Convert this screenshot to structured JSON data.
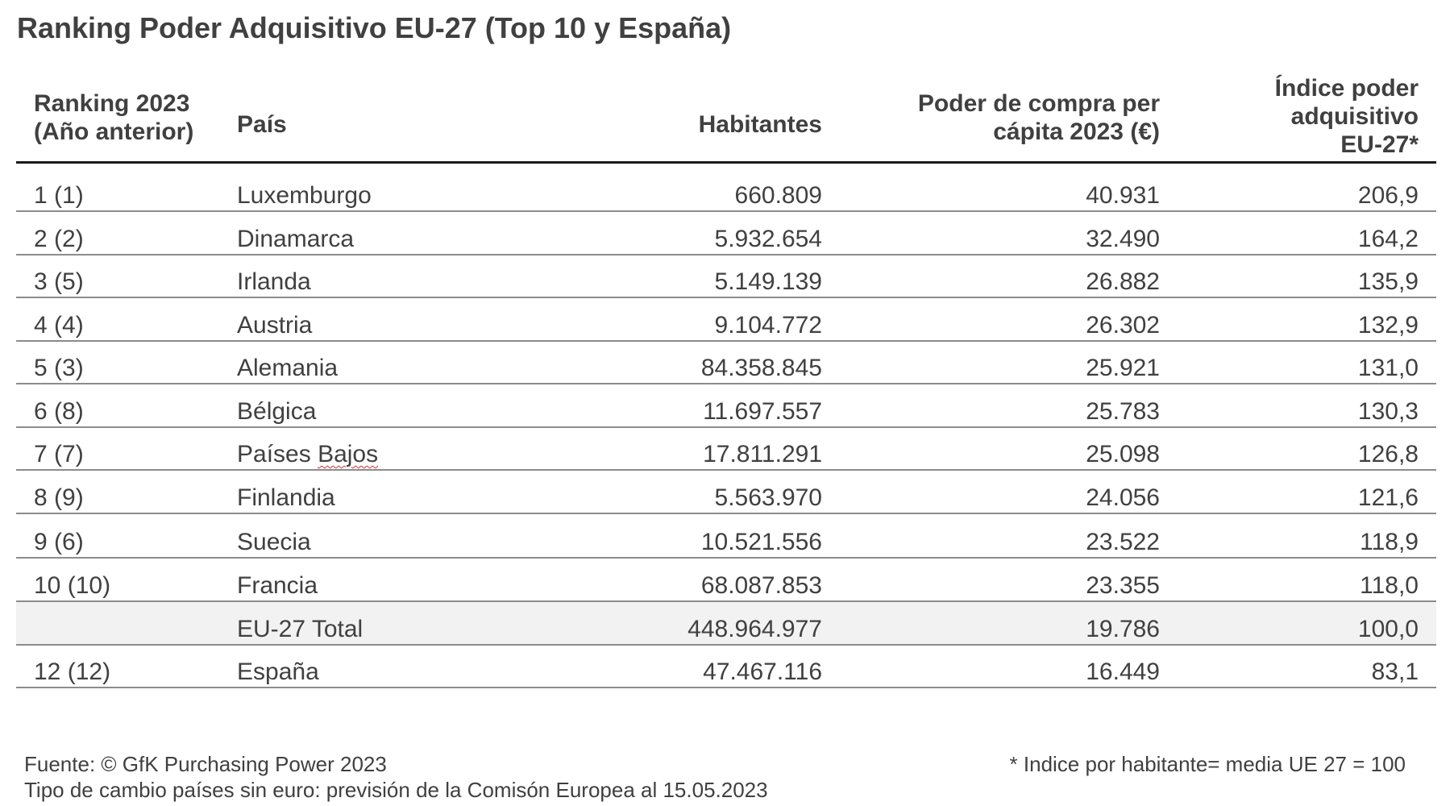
{
  "title": "Ranking Poder Adquisitivo EU-27 (Top 10 y España)",
  "chart_data": {
    "type": "table",
    "title": "Ranking Poder Adquisitivo EU-27 (Top 10 y España)",
    "columns": [
      {
        "line1": "Ranking 2023",
        "line2": "(Año anterior)"
      },
      {
        "line1": "País"
      },
      {
        "line1": "Habitantes"
      },
      {
        "line1": "Poder de compra per",
        "line2": "cápita 2023 (€)"
      },
      {
        "line1": "Índice poder",
        "line2": "adquisitivo",
        "line3": "EU-27*"
      }
    ],
    "rows": [
      {
        "ranking": "1 (1)",
        "pais": "Luxemburgo",
        "habitantes": "660.809",
        "poder": "40.931",
        "indice": "206,9"
      },
      {
        "ranking": "2 (2)",
        "pais": "Dinamarca",
        "habitantes": "5.932.654",
        "poder": "32.490",
        "indice": "164,2"
      },
      {
        "ranking": "3 (5)",
        "pais": "Irlanda",
        "habitantes": "5.149.139",
        "poder": "26.882",
        "indice": "135,9"
      },
      {
        "ranking": "4 (4)",
        "pais": "Austria",
        "habitantes": "9.104.772",
        "poder": "26.302",
        "indice": "132,9"
      },
      {
        "ranking": "5 (3)",
        "pais": "Alemania",
        "habitantes": "84.358.845",
        "poder": "25.921",
        "indice": "131,0"
      },
      {
        "ranking": "6 (8)",
        "pais": "Bélgica",
        "habitantes": "11.697.557",
        "poder": "25.783",
        "indice": "130,3"
      },
      {
        "ranking": "7 (7)",
        "pais": "Países",
        "pais_extra": "Bajos",
        "habitantes": "17.811.291",
        "poder": "25.098",
        "indice": "126,8"
      },
      {
        "ranking": "8 (9)",
        "pais": "Finlandia",
        "habitantes": "5.563.970",
        "poder": "24.056",
        "indice": "121,6"
      },
      {
        "ranking": "9 (6)",
        "pais": "Suecia",
        "habitantes": "10.521.556",
        "poder": "23.522",
        "indice": "118,9"
      },
      {
        "ranking": "10 (10)",
        "pais": "Francia",
        "habitantes": "68.087.853",
        "poder": "23.355",
        "indice": "118,0"
      },
      {
        "ranking": "",
        "pais": "EU-27 Total",
        "habitantes": "448.964.977",
        "poder": "19.786",
        "indice": "100,0"
      },
      {
        "ranking": "12 (12)",
        "pais": "España",
        "habitantes": "47.467.116",
        "poder": "16.449",
        "indice": "83,1"
      }
    ]
  },
  "footer": {
    "source": "Fuente: © GfK Purchasing Power 2023",
    "exchange": "Tipo de cambio países sin euro: previsión de la Comisón Europea al 15.05.2023",
    "note": "* Indice por habitante= media UE 27 = 100"
  },
  "colors": {
    "text": "#404040",
    "header_rule": "#1a1a1a",
    "row_rule": "#8c8c8c",
    "total_row_bg": "#f2f2f2"
  }
}
